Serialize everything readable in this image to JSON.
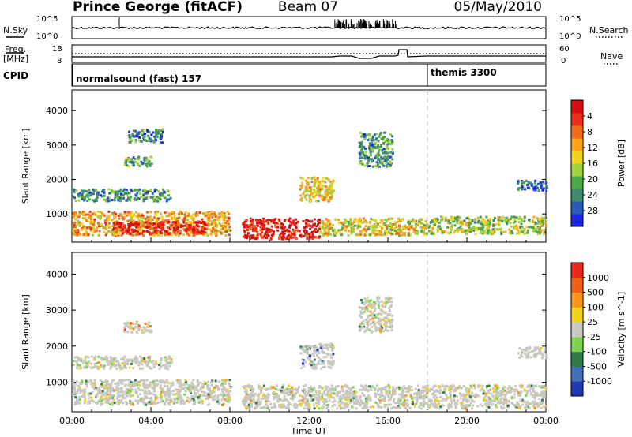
{
  "header": {
    "station": "Prince George (fitACF)",
    "beam": "Beam 07",
    "date": "05/May/2010"
  },
  "noise_panel": {
    "left_label": "N.Sky",
    "right_label": "N.Search",
    "ticks": [
      "10^5",
      "10^0"
    ]
  },
  "freq_panel": {
    "left_label_1": "Freq.",
    "left_label_2": "[MHz]",
    "left_ticks": [
      "18",
      "8"
    ],
    "right_label": "Nave",
    "right_ticks": [
      "60",
      "0"
    ]
  },
  "cpid_panel": {
    "label": "CPID",
    "segments": [
      {
        "name": "normalsound (fast) 157",
        "start_hour": 0
      },
      {
        "name": "themis 3300",
        "start_hour": 18
      }
    ]
  },
  "chart_data": [
    {
      "type": "heatmap",
      "title": "",
      "xlabel": "Time UT",
      "ylabel": "Slant Range [km]",
      "x_ticks": [
        "00:00",
        "04:00",
        "08:00",
        "12:00",
        "16:00",
        "20:00",
        "00:00"
      ],
      "xlim_hours": [
        0,
        24
      ],
      "y_ticks": [
        1000,
        2000,
        3000,
        4000
      ],
      "ylim": [
        180,
        4600
      ],
      "colorbar": {
        "label": "Power [dB]",
        "ticks": [
          "4",
          "8",
          "12",
          "16",
          "20",
          "24",
          "28"
        ],
        "colors": [
          "#1c28dc",
          "#2a5ab8",
          "#3f8b6c",
          "#4fa847",
          "#9fd23c",
          "#f0d21e",
          "#f9a21b",
          "#f26a1c",
          "#ea2d1d",
          "#d40f10"
        ]
      },
      "echo_regions": [
        {
          "start_hour": 0.0,
          "end_hour": 8.0,
          "range_min": 400,
          "range_max": 1100,
          "level": 0.65
        },
        {
          "start_hour": 2.0,
          "end_hour": 6.8,
          "range_min": 450,
          "range_max": 800,
          "level": 0.95
        },
        {
          "start_hour": 8.6,
          "end_hour": 12.5,
          "range_min": 300,
          "range_max": 900,
          "level": 0.98
        },
        {
          "start_hour": 12.5,
          "end_hour": 18.0,
          "range_min": 400,
          "range_max": 900,
          "level": 0.55
        },
        {
          "start_hour": 18.0,
          "end_hour": 24.0,
          "range_min": 450,
          "range_max": 950,
          "level": 0.45
        },
        {
          "start_hour": 0.0,
          "end_hour": 5.0,
          "range_min": 1400,
          "range_max": 1750,
          "level": 0.25
        },
        {
          "start_hour": 2.6,
          "end_hour": 4.0,
          "range_min": 2400,
          "range_max": 2700,
          "level": 0.35
        },
        {
          "start_hour": 2.8,
          "end_hour": 4.6,
          "range_min": 3100,
          "range_max": 3500,
          "level": 0.2
        },
        {
          "start_hour": 11.5,
          "end_hour": 13.2,
          "range_min": 1400,
          "range_max": 2100,
          "level": 0.6
        },
        {
          "start_hour": 14.5,
          "end_hour": 16.2,
          "range_min": 2400,
          "range_max": 3400,
          "level": 0.25
        },
        {
          "start_hour": 22.5,
          "end_hour": 24.0,
          "range_min": 1700,
          "range_max": 2000,
          "level": 0.15
        }
      ]
    },
    {
      "type": "heatmap",
      "title": "",
      "xlabel": "Time UT",
      "ylabel": "Slant Range [km]",
      "x_ticks": [
        "00:00",
        "04:00",
        "08:00",
        "12:00",
        "16:00",
        "20:00",
        "00:00"
      ],
      "xlim_hours": [
        0,
        24
      ],
      "y_ticks": [
        1000,
        2000,
        3000,
        4000
      ],
      "ylim": [
        180,
        4600
      ],
      "colorbar": {
        "label": "Velocity [m s^-1]",
        "ticks": [
          "1000",
          "500",
          "100",
          "25",
          "-25",
          "-100",
          "-500",
          "-1000"
        ],
        "colors": [
          "#1f3ab0",
          "#3f6fb6",
          "#2e7d46",
          "#7cd24e",
          "#c8c8c0",
          "#f0d21e",
          "#f7951c",
          "#f06016",
          "#e8281a"
        ]
      },
      "echo_regions": [
        {
          "start_hour": 0.0,
          "end_hour": 8.0,
          "range_min": 400,
          "range_max": 1100,
          "level": 0.5
        },
        {
          "start_hour": 8.6,
          "end_hour": 24.0,
          "range_min": 300,
          "range_max": 950,
          "level": 0.5
        },
        {
          "start_hour": 0.0,
          "end_hour": 5.0,
          "range_min": 1400,
          "range_max": 1750,
          "level": 0.5
        },
        {
          "start_hour": 2.6,
          "end_hour": 4.0,
          "range_min": 2400,
          "range_max": 2700,
          "level": 0.7
        },
        {
          "start_hour": 11.5,
          "end_hour": 13.2,
          "range_min": 1400,
          "range_max": 2100,
          "level": 0.2
        },
        {
          "start_hour": 14.5,
          "end_hour": 16.2,
          "range_min": 2400,
          "range_max": 3400,
          "level": 0.5
        },
        {
          "start_hour": 22.5,
          "end_hour": 24.0,
          "range_min": 1700,
          "range_max": 2000,
          "level": 0.5
        }
      ]
    }
  ]
}
